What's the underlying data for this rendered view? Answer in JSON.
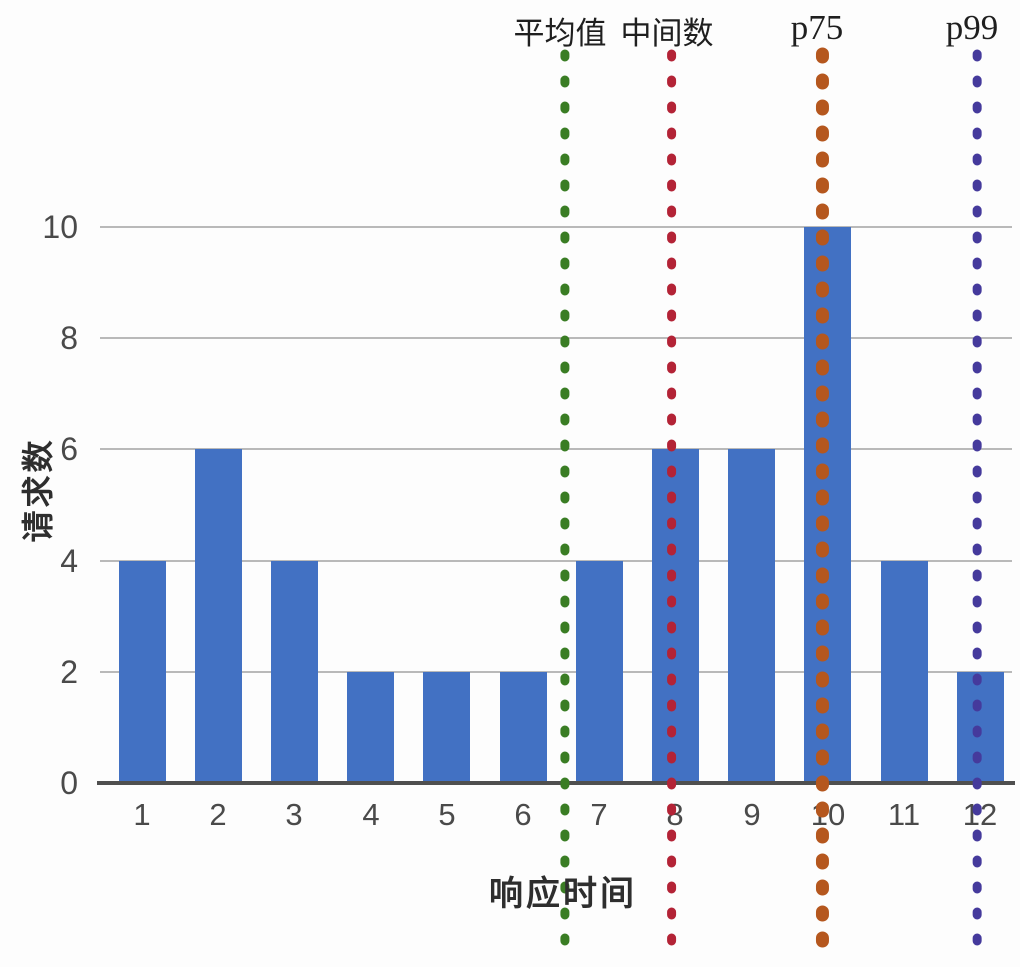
{
  "chart_data": {
    "type": "bar",
    "title": "",
    "xlabel": "响应时间",
    "ylabel": "请求数",
    "categories": [
      "1",
      "2",
      "3",
      "4",
      "5",
      "6",
      "7",
      "8",
      "9",
      "10",
      "11",
      "12"
    ],
    "values": [
      4,
      6,
      4,
      2,
      2,
      2,
      4,
      6,
      6,
      10,
      4,
      2
    ],
    "ylim": [
      0,
      10
    ],
    "yticks": [
      "0",
      "2",
      "4",
      "6",
      "8",
      "10"
    ],
    "grid": true,
    "legend_position": "none",
    "bar_color": "#4271c3",
    "reference_lines": [
      {
        "label": "平均值",
        "x": 6.55,
        "color": "#3a7d24",
        "stroke_width": 9
      },
      {
        "label": "中间数",
        "x": 7.95,
        "color": "#b32336",
        "stroke_width": 9
      },
      {
        "label": "p75",
        "x": 9.93,
        "color": "#b5571e",
        "stroke_width": 13
      },
      {
        "label": "p99",
        "x": 11.96,
        "color": "#453a9c",
        "stroke_width": 9
      }
    ]
  },
  "styles": {
    "background": "#fdfdfd",
    "axis_color": "#4f4f4f",
    "grid_color": "#b9b9b9",
    "tick_color": "#4a4a4a"
  }
}
